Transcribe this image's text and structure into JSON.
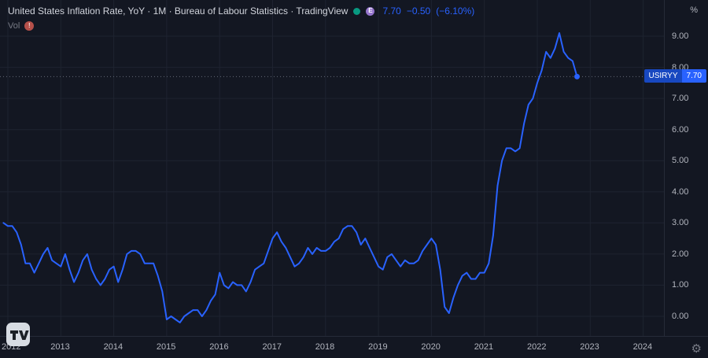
{
  "header": {
    "title": "United States Inflation Rate, YoY · 1M · Bureau of Labour Statistics · TradingView",
    "earnings_letter": "E",
    "price": "7.70",
    "change": "−0.50",
    "change_pct": "(−6.10%)",
    "vol_label": "Vol",
    "vol_warning": "!"
  },
  "price_axis": {
    "unit": "%",
    "labels": [
      "9.00",
      "8.00",
      "7.00",
      "6.00",
      "5.00",
      "4.00",
      "3.00",
      "2.00",
      "1.00",
      "0.00"
    ]
  },
  "time_axis": {
    "labels": [
      "2012",
      "2013",
      "2014",
      "2015",
      "2016",
      "2017",
      "2018",
      "2019",
      "2020",
      "2021",
      "2022",
      "2023",
      "2024"
    ]
  },
  "price_label": {
    "symbol": "USIRYY",
    "value": "7.70"
  },
  "icons": {
    "market_status": "green-dot",
    "earnings": "circle-E",
    "warning": "exclamation-circle",
    "settings": "gear",
    "logo": "tradingview"
  },
  "colors": {
    "background": "#131722",
    "line": "#2962ff",
    "grid": "#1e2330",
    "price_line": "#6b7280",
    "axis_text": "#b2b5be",
    "title_text": "#d1d4dc",
    "muted_text": "#787b86",
    "accent_blue": "#2962ff",
    "badge_symbol_bg": "#1848c0",
    "green_dot": "#089981",
    "purple_badge": "#9575cd"
  },
  "chart_data": {
    "type": "line",
    "title": "United States Inflation Rate, YoY",
    "series_name": "USIRYY",
    "frequency": "monthly",
    "x_start": "2011-12",
    "start_offset_months": -1,
    "last_value": 7.7,
    "change": -0.5,
    "change_pct": -6.1,
    "ylim": [
      -0.65,
      10.15
    ],
    "y_ticks": [
      0,
      1,
      2,
      3,
      4,
      5,
      6,
      7,
      8,
      9
    ],
    "x_tick_labels": [
      "2012",
      "2013",
      "2014",
      "2015",
      "2016",
      "2017",
      "2018",
      "2019",
      "2020",
      "2021",
      "2022",
      "2023",
      "2024"
    ],
    "grid": true,
    "legend_position": "none",
    "values": [
      3.0,
      2.9,
      2.9,
      2.7,
      2.3,
      1.7,
      1.7,
      1.4,
      1.7,
      2.0,
      2.2,
      1.8,
      1.7,
      1.6,
      2.0,
      1.5,
      1.1,
      1.4,
      1.8,
      2.0,
      1.5,
      1.2,
      1.0,
      1.2,
      1.5,
      1.6,
      1.1,
      1.5,
      2.0,
      2.1,
      2.1,
      2.0,
      1.7,
      1.7,
      1.7,
      1.3,
      0.8,
      -0.1,
      0.0,
      -0.1,
      -0.2,
      0.0,
      0.1,
      0.2,
      0.2,
      0.0,
      0.2,
      0.5,
      0.7,
      1.4,
      1.0,
      0.9,
      1.1,
      1.0,
      1.0,
      0.8,
      1.1,
      1.5,
      1.6,
      1.7,
      2.1,
      2.5,
      2.7,
      2.4,
      2.2,
      1.9,
      1.6,
      1.7,
      1.9,
      2.2,
      2.0,
      2.2,
      2.1,
      2.1,
      2.2,
      2.4,
      2.5,
      2.8,
      2.9,
      2.9,
      2.7,
      2.3,
      2.5,
      2.2,
      1.9,
      1.6,
      1.5,
      1.9,
      2.0,
      1.8,
      1.6,
      1.8,
      1.7,
      1.7,
      1.8,
      2.1,
      2.3,
      2.5,
      2.3,
      1.5,
      0.3,
      0.1,
      0.6,
      1.0,
      1.3,
      1.4,
      1.2,
      1.2,
      1.4,
      1.4,
      1.7,
      2.6,
      4.2,
      5.0,
      5.4,
      5.4,
      5.3,
      5.4,
      6.2,
      6.8,
      7.0,
      7.5,
      7.9,
      8.5,
      8.3,
      8.6,
      9.1,
      8.5,
      8.3,
      8.2,
      7.7
    ]
  }
}
